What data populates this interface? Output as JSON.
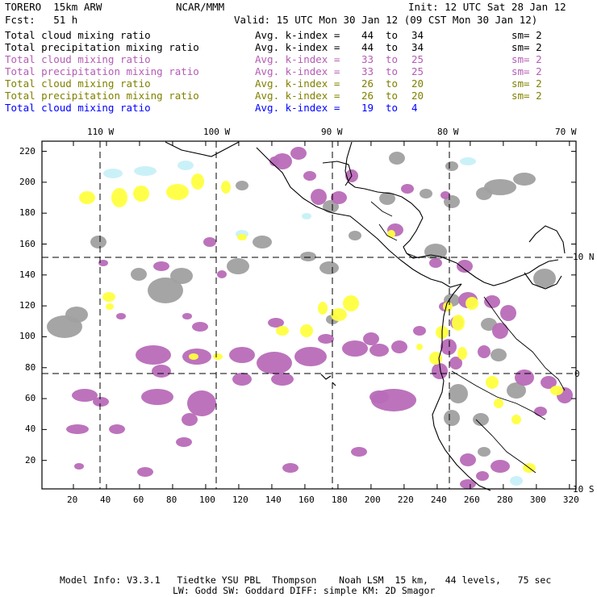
{
  "header": {
    "model_title": "TORERO  15km ARW",
    "center": "NCAR/MMM",
    "init": "Init: 12 UTC Sat 28 Jan 12",
    "fcst": "Fcst:   51 h",
    "valid": "Valid: 15 UTC Mon 30 Jan 12 (09 CST Mon 30 Jan 12)"
  },
  "legend": [
    {
      "field": "Total cloud mixing ratio",
      "stat": "Avg. k-index =",
      "v1": "44",
      "to": "to",
      "v2": "34",
      "sm": "sm= 2",
      "color": "#000000"
    },
    {
      "field": "Total precipitation mixing ratio",
      "stat": "Avg. k-index =",
      "v1": "44",
      "to": "to",
      "v2": "34",
      "sm": "sm= 2",
      "color": "#000000"
    },
    {
      "field": "Total cloud mixing ratio",
      "stat": "Avg. k-index =",
      "v1": "33",
      "to": "to",
      "v2": "25",
      "sm": "sm= 2",
      "color": "#b45cb4"
    },
    {
      "field": "Total precipitation mixing ratio",
      "stat": "Avg. k-index =",
      "v1": "33",
      "to": "to",
      "v2": "25",
      "sm": "sm= 2",
      "color": "#b45cb4"
    },
    {
      "field": "Total cloud mixing ratio",
      "stat": "Avg. k-index =",
      "v1": "26",
      "to": "to",
      "v2": "20",
      "sm": "sm= 2",
      "color": "#808000"
    },
    {
      "field": "Total precipitation mixing ratio",
      "stat": "Avg. k-index =",
      "v1": "26",
      "to": "to",
      "v2": "20",
      "sm": "sm= 2",
      "color": "#808000"
    },
    {
      "field": "Total cloud mixing ratio",
      "stat": "Avg. k-index =",
      "v1": "19",
      "to": "to",
      "v2": "4",
      "sm": "",
      "color": "#0000ff"
    }
  ],
  "map": {
    "top_lon_labels": [
      "110 W",
      "100 W",
      "90 W",
      "80 W",
      "70 W"
    ],
    "right_lat_labels": [
      "10 N",
      "0",
      "10 S"
    ],
    "x_ticks": [
      "20",
      "40",
      "60",
      "80",
      "100",
      "120",
      "140",
      "160",
      "180",
      "200",
      "220",
      "240",
      "260",
      "280",
      "300",
      "320"
    ],
    "y_ticks": [
      "220",
      "200",
      "180",
      "160",
      "140",
      "120",
      "100",
      "80",
      "60",
      "40",
      "20"
    ],
    "colors": {
      "gray": "#a0a0a0",
      "magenta": "#b86cb8",
      "yellow": "#ffff40",
      "cyan": "#c8f0f8",
      "coast": "#000000"
    }
  },
  "footer": {
    "line1": "Model Info: V3.3.1   Tiedtke YSU PBL  Thompson    Noah LSM  15 km,   44 levels,   75 sec",
    "line2": "LW: Godd SW: Goddard DIFF: simple KM: 2D Smagor"
  }
}
